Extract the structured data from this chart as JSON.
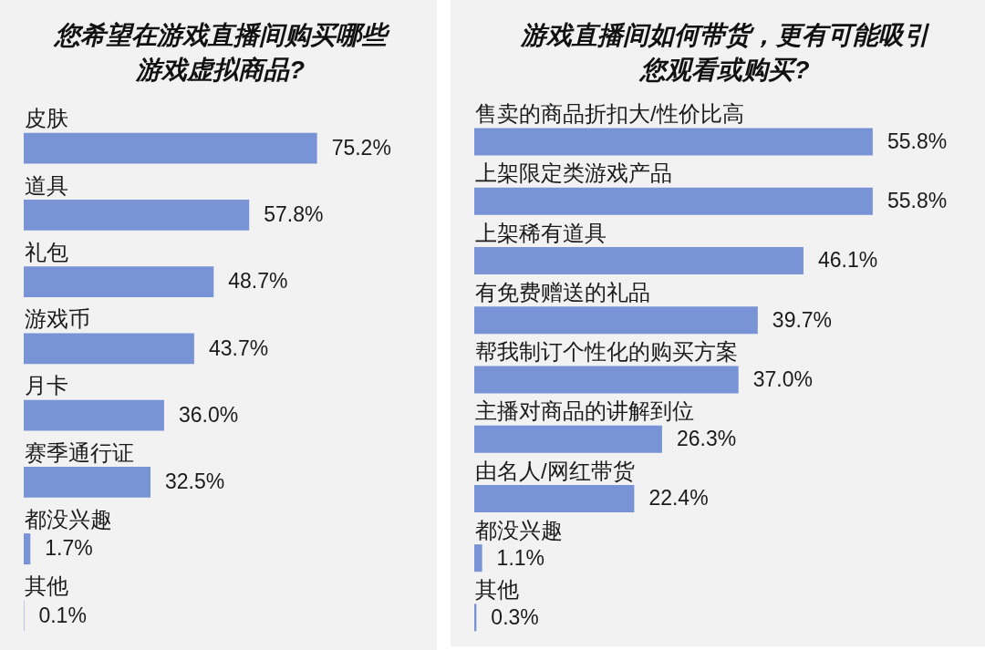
{
  "chart_data": [
    {
      "type": "bar",
      "orientation": "horizontal",
      "title": "您希望在游戏直播间购买哪些游戏虚拟商品?",
      "categories": [
        "皮肤",
        "道具",
        "礼包",
        "游戏币",
        "月卡",
        "赛季通行证",
        "都没兴趣",
        "其他"
      ],
      "values": [
        75.2,
        57.8,
        48.7,
        43.7,
        36.0,
        32.5,
        1.7,
        0.1
      ],
      "value_labels": [
        "75.2%",
        "57.8%",
        "48.7%",
        "43.7%",
        "36.0%",
        "32.5%",
        "1.7%",
        "0.1%"
      ],
      "color": "#7994d6",
      "tick_labels": "y"
    },
    {
      "type": "bar",
      "orientation": "horizontal",
      "title": "游戏直播间如何带货，更有可能吸引您观看或购买?",
      "categories": [
        "售卖的商品折扣大/性价比高",
        "上架限定类游戏产品",
        "上架稀有道具",
        "有免费赠送的礼品",
        "帮我制订个性化的购买方案",
        "主播对商品的讲解到位",
        "由名人/网红带货",
        "都没兴趣",
        "其他"
      ],
      "values": [
        55.8,
        55.8,
        46.1,
        39.7,
        37.0,
        26.3,
        22.4,
        1.1,
        0.3
      ],
      "value_labels": [
        "55.8%",
        "55.8%",
        "46.1%",
        "39.7%",
        "37.0%",
        "26.3%",
        "22.4%",
        "1.1%",
        "0.3%"
      ],
      "color": "#7994d6",
      "tick_labels": "y"
    }
  ]
}
